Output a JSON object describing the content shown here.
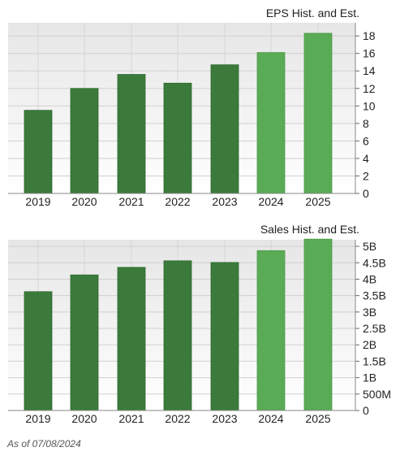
{
  "chart_data": [
    {
      "type": "bar",
      "title": "EPS Hist. and Est.",
      "categories": [
        "2019",
        "2020",
        "2021",
        "2022",
        "2023",
        "2024",
        "2025"
      ],
      "values": [
        9.5,
        12.0,
        13.6,
        12.6,
        14.7,
        16.1,
        18.3
      ],
      "estimate": [
        false,
        false,
        false,
        false,
        false,
        true,
        true
      ],
      "y_ticks": [
        0,
        2,
        4,
        6,
        8,
        10,
        12,
        14,
        16,
        18
      ],
      "y_tick_labels": [
        "0",
        "2",
        "4",
        "6",
        "8",
        "10",
        "12",
        "14",
        "16",
        "18"
      ],
      "ylim": [
        0,
        19.5
      ],
      "grid": true,
      "colors": {
        "historical": "#3b7a3b",
        "estimate": "#5aab55"
      }
    },
    {
      "type": "bar",
      "title": "Sales Hist. and Est.",
      "categories": [
        "2019",
        "2020",
        "2021",
        "2022",
        "2023",
        "2024",
        "2025"
      ],
      "values": [
        3.62,
        4.13,
        4.36,
        4.56,
        4.51,
        4.87,
        5.22
      ],
      "value_unit": "B",
      "estimate": [
        false,
        false,
        false,
        false,
        false,
        true,
        true
      ],
      "y_ticks": [
        0,
        0.5,
        1,
        1.5,
        2,
        2.5,
        3,
        3.5,
        4,
        4.5,
        5
      ],
      "y_tick_labels": [
        "0",
        "500M",
        "1B",
        "1.5B",
        "2B",
        "2.5B",
        "3B",
        "3.5B",
        "4B",
        "4.5B",
        "5B"
      ],
      "ylim": [
        0,
        5.2
      ],
      "grid": true,
      "colors": {
        "historical": "#3b7a3b",
        "estimate": "#5aab55"
      }
    }
  ],
  "footnote": "As of 07/08/2024"
}
